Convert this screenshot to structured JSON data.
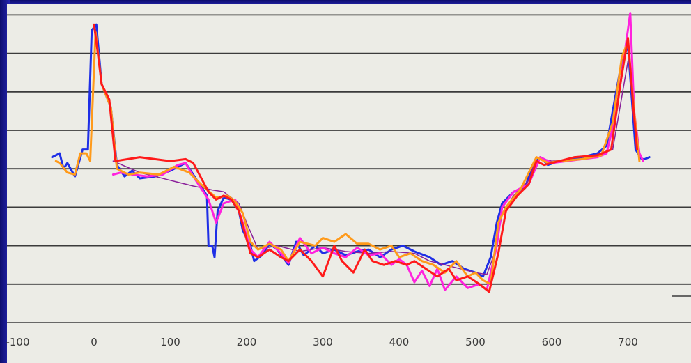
{
  "chart_data": {
    "type": "line",
    "xlim": [
      -100,
      760
    ],
    "ylim": [
      0,
      8
    ],
    "grid": "horizontal",
    "x_ticks": [
      "-100",
      "0",
      "100",
      "200",
      "300",
      "400",
      "500",
      "600",
      "700"
    ],
    "x_tick_values": [
      -100,
      0,
      100,
      200,
      300,
      400,
      500,
      600,
      700
    ],
    "series": [
      {
        "color": "#1f2fe6",
        "width": 3,
        "points": [
          [
            -55,
            4.3
          ],
          [
            -45,
            4.4
          ],
          [
            -40,
            4.0
          ],
          [
            -35,
            4.15
          ],
          [
            -25,
            3.8
          ],
          [
            -15,
            4.5
          ],
          [
            -8,
            4.5
          ],
          [
            -3,
            7.6
          ],
          [
            3,
            7.75
          ],
          [
            10,
            6.2
          ],
          [
            22,
            5.6
          ],
          [
            30,
            4.1
          ],
          [
            40,
            3.8
          ],
          [
            50,
            3.95
          ],
          [
            60,
            3.75
          ],
          [
            80,
            3.8
          ],
          [
            100,
            3.95
          ],
          [
            120,
            4.15
          ],
          [
            125,
            4.0
          ],
          [
            135,
            3.7
          ],
          [
            148,
            3.3
          ],
          [
            150,
            2.0
          ],
          [
            155,
            2.0
          ],
          [
            158,
            1.7
          ],
          [
            162,
            2.9
          ],
          [
            170,
            3.25
          ],
          [
            180,
            3.2
          ],
          [
            190,
            2.9
          ],
          [
            195,
            2.4
          ],
          [
            205,
            2.0
          ],
          [
            210,
            1.6
          ],
          [
            220,
            1.75
          ],
          [
            230,
            2.05
          ],
          [
            240,
            1.9
          ],
          [
            255,
            1.5
          ],
          [
            265,
            2.1
          ],
          [
            275,
            1.75
          ],
          [
            290,
            2.0
          ],
          [
            300,
            1.8
          ],
          [
            315,
            1.9
          ],
          [
            330,
            1.75
          ],
          [
            345,
            1.85
          ],
          [
            360,
            1.9
          ],
          [
            375,
            1.7
          ],
          [
            390,
            1.9
          ],
          [
            405,
            2.0
          ],
          [
            420,
            1.85
          ],
          [
            440,
            1.7
          ],
          [
            455,
            1.5
          ],
          [
            470,
            1.6
          ],
          [
            485,
            1.4
          ],
          [
            500,
            1.3
          ],
          [
            510,
            1.2
          ],
          [
            520,
            1.7
          ],
          [
            528,
            2.6
          ],
          [
            535,
            3.1
          ],
          [
            550,
            3.4
          ],
          [
            565,
            3.5
          ],
          [
            575,
            4.1
          ],
          [
            585,
            4.3
          ],
          [
            595,
            4.1
          ],
          [
            610,
            4.2
          ],
          [
            625,
            4.25
          ],
          [
            640,
            4.3
          ],
          [
            660,
            4.4
          ],
          [
            672,
            4.6
          ],
          [
            680,
            5.5
          ],
          [
            692,
            6.8
          ],
          [
            700,
            7.2
          ],
          [
            710,
            4.5
          ],
          [
            718,
            4.25
          ],
          [
            722,
            4.25
          ],
          [
            728,
            4.3
          ]
        ]
      },
      {
        "color": "#8a1f9a",
        "width": 1.5,
        "points": [
          [
            25,
            4.2
          ],
          [
            60,
            3.9
          ],
          [
            100,
            3.7
          ],
          [
            130,
            3.55
          ],
          [
            155,
            3.45
          ],
          [
            170,
            3.4
          ],
          [
            190,
            3.1
          ],
          [
            200,
            2.6
          ],
          [
            215,
            1.9
          ],
          [
            240,
            2.0
          ],
          [
            270,
            1.85
          ],
          [
            300,
            1.95
          ],
          [
            330,
            1.85
          ],
          [
            360,
            1.8
          ],
          [
            390,
            1.85
          ],
          [
            420,
            1.8
          ],
          [
            440,
            1.6
          ],
          [
            460,
            1.5
          ],
          [
            480,
            1.4
          ],
          [
            500,
            1.3
          ],
          [
            515,
            1.25
          ],
          [
            525,
            1.8
          ],
          [
            535,
            2.8
          ],
          [
            550,
            3.3
          ],
          [
            570,
            3.7
          ],
          [
            580,
            4.3
          ],
          [
            600,
            4.2
          ],
          [
            640,
            4.25
          ],
          [
            680,
            4.5
          ],
          [
            700,
            6.8
          ]
        ]
      },
      {
        "color": "#ff22dd",
        "width": 3,
        "points": [
          [
            25,
            3.85
          ],
          [
            35,
            3.9
          ],
          [
            50,
            3.85
          ],
          [
            70,
            3.8
          ],
          [
            90,
            3.85
          ],
          [
            110,
            4.1
          ],
          [
            120,
            4.15
          ],
          [
            130,
            3.8
          ],
          [
            150,
            3.2
          ],
          [
            160,
            2.6
          ],
          [
            170,
            3.1
          ],
          [
            185,
            3.2
          ],
          [
            195,
            2.6
          ],
          [
            205,
            1.9
          ],
          [
            215,
            1.7
          ],
          [
            230,
            2.1
          ],
          [
            245,
            1.8
          ],
          [
            255,
            1.55
          ],
          [
            270,
            2.2
          ],
          [
            285,
            1.8
          ],
          [
            300,
            1.95
          ],
          [
            315,
            1.8
          ],
          [
            330,
            1.7
          ],
          [
            345,
            1.95
          ],
          [
            360,
            1.75
          ],
          [
            375,
            1.8
          ],
          [
            390,
            1.5
          ],
          [
            400,
            1.65
          ],
          [
            410,
            1.5
          ],
          [
            420,
            1.05
          ],
          [
            430,
            1.35
          ],
          [
            440,
            0.95
          ],
          [
            450,
            1.4
          ],
          [
            460,
            0.85
          ],
          [
            475,
            1.2
          ],
          [
            490,
            0.9
          ],
          [
            505,
            1.0
          ],
          [
            515,
            0.85
          ],
          [
            528,
            2.0
          ],
          [
            535,
            3.0
          ],
          [
            550,
            3.4
          ],
          [
            570,
            3.6
          ],
          [
            585,
            4.3
          ],
          [
            600,
            4.15
          ],
          [
            620,
            4.2
          ],
          [
            640,
            4.25
          ],
          [
            660,
            4.3
          ],
          [
            672,
            4.4
          ],
          [
            685,
            5.5
          ],
          [
            695,
            6.9
          ],
          [
            703,
            8.05
          ],
          [
            708,
            5.5
          ],
          [
            715,
            4.4
          ],
          [
            720,
            4.2
          ]
        ]
      },
      {
        "color": "#ff9a1a",
        "width": 3,
        "points": [
          [
            -50,
            4.2
          ],
          [
            -45,
            4.15
          ],
          [
            -35,
            3.9
          ],
          [
            -25,
            3.85
          ],
          [
            -18,
            4.4
          ],
          [
            -10,
            4.4
          ],
          [
            -5,
            4.2
          ],
          [
            2,
            7.55
          ],
          [
            10,
            6.2
          ],
          [
            22,
            5.6
          ],
          [
            30,
            4.0
          ],
          [
            45,
            3.85
          ],
          [
            60,
            3.9
          ],
          [
            85,
            3.85
          ],
          [
            105,
            4.05
          ],
          [
            125,
            3.9
          ],
          [
            140,
            3.6
          ],
          [
            160,
            3.25
          ],
          [
            175,
            3.3
          ],
          [
            185,
            3.15
          ],
          [
            195,
            2.85
          ],
          [
            205,
            2.1
          ],
          [
            215,
            1.9
          ],
          [
            230,
            2.05
          ],
          [
            245,
            1.9
          ],
          [
            255,
            1.6
          ],
          [
            270,
            2.1
          ],
          [
            290,
            2.0
          ],
          [
            300,
            2.2
          ],
          [
            315,
            2.1
          ],
          [
            330,
            2.3
          ],
          [
            345,
            2.05
          ],
          [
            360,
            2.05
          ],
          [
            375,
            1.9
          ],
          [
            390,
            2.0
          ],
          [
            400,
            1.7
          ],
          [
            415,
            1.8
          ],
          [
            430,
            1.6
          ],
          [
            445,
            1.5
          ],
          [
            460,
            1.3
          ],
          [
            475,
            1.6
          ],
          [
            490,
            1.2
          ],
          [
            500,
            1.3
          ],
          [
            510,
            1.1
          ],
          [
            520,
            1.0
          ],
          [
            530,
            2.6
          ],
          [
            540,
            3.0
          ],
          [
            560,
            3.5
          ],
          [
            580,
            4.3
          ],
          [
            595,
            4.15
          ],
          [
            610,
            4.2
          ],
          [
            640,
            4.25
          ],
          [
            665,
            4.35
          ],
          [
            680,
            5.2
          ],
          [
            692,
            6.9
          ],
          [
            700,
            7.3
          ],
          [
            708,
            5.5
          ],
          [
            715,
            4.2
          ]
        ]
      },
      {
        "color": "#ff1a1a",
        "width": 3,
        "points": [
          [
            0,
            7.75
          ],
          [
            5,
            7.0
          ],
          [
            10,
            6.2
          ],
          [
            20,
            5.8
          ],
          [
            28,
            4.2
          ],
          [
            60,
            4.3
          ],
          [
            100,
            4.2
          ],
          [
            120,
            4.25
          ],
          [
            130,
            4.15
          ],
          [
            150,
            3.4
          ],
          [
            160,
            3.2
          ],
          [
            170,
            3.3
          ],
          [
            180,
            3.2
          ],
          [
            190,
            2.9
          ],
          [
            205,
            1.8
          ],
          [
            215,
            1.7
          ],
          [
            230,
            1.9
          ],
          [
            245,
            1.7
          ],
          [
            255,
            1.6
          ],
          [
            270,
            1.9
          ],
          [
            285,
            1.6
          ],
          [
            300,
            1.2
          ],
          [
            315,
            2.0
          ],
          [
            325,
            1.6
          ],
          [
            340,
            1.3
          ],
          [
            355,
            1.9
          ],
          [
            365,
            1.6
          ],
          [
            380,
            1.5
          ],
          [
            395,
            1.6
          ],
          [
            410,
            1.5
          ],
          [
            420,
            1.6
          ],
          [
            435,
            1.4
          ],
          [
            450,
            1.2
          ],
          [
            465,
            1.4
          ],
          [
            475,
            1.1
          ],
          [
            490,
            1.2
          ],
          [
            505,
            1.0
          ],
          [
            518,
            0.8
          ],
          [
            530,
            1.8
          ],
          [
            540,
            2.9
          ],
          [
            555,
            3.3
          ],
          [
            570,
            3.6
          ],
          [
            580,
            4.2
          ],
          [
            590,
            4.1
          ],
          [
            610,
            4.2
          ],
          [
            630,
            4.3
          ],
          [
            660,
            4.35
          ],
          [
            678,
            4.5
          ],
          [
            690,
            6.2
          ],
          [
            700,
            7.4
          ],
          [
            707,
            5.6
          ],
          [
            712,
            4.5
          ]
        ]
      }
    ]
  }
}
